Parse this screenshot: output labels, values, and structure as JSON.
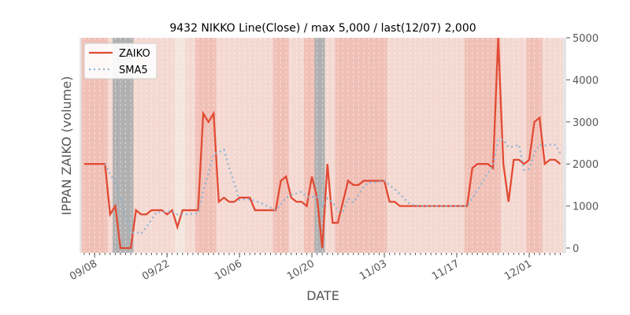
{
  "chart_data": {
    "type": "line",
    "title": "9432 NIKKO Line(Close) / max 5,000 / last(12/07) 2,000",
    "xlabel": "DATE",
    "ylabel": "IPPAN ZAIKO (volume)",
    "start_date": "09/06",
    "end_date": "12/07",
    "ylim": [
      0,
      5000
    ],
    "yticks": [
      "0",
      "1000",
      "2000",
      "3000",
      "4000",
      "5000"
    ],
    "xticks": [
      {
        "label": "09/08",
        "day": 2
      },
      {
        "label": "09/22",
        "day": 16
      },
      {
        "label": "10/06",
        "day": 30
      },
      {
        "label": "10/20",
        "day": 44
      },
      {
        "label": "11/03",
        "day": 58
      },
      {
        "label": "11/17",
        "day": 72
      },
      {
        "label": "12/01",
        "day": 86
      }
    ],
    "legend": {
      "position": "top-left",
      "entries": [
        "ZAIKO",
        "SMA5"
      ]
    },
    "series": [
      {
        "name": "ZAIKO",
        "color": "#e24a33",
        "values": [
          2000,
          2000,
          2000,
          2000,
          2000,
          800,
          1000,
          0,
          0,
          0,
          900,
          800,
          800,
          900,
          900,
          900,
          800,
          900,
          500,
          900,
          900,
          900,
          900,
          3200,
          3000,
          3200,
          1100,
          1200,
          1100,
          1100,
          1200,
          1200,
          1200,
          900,
          900,
          900,
          900,
          900,
          1600,
          1700,
          1200,
          1100,
          1100,
          1000,
          1700,
          1200,
          0,
          2000,
          600,
          600,
          1100,
          1600,
          1500,
          1500,
          1600,
          1600,
          1600,
          1600,
          1600,
          1100,
          1100,
          1000,
          1000,
          1000,
          1000,
          1000,
          1000,
          1000,
          1000,
          1000,
          1000,
          1000,
          1000,
          1000,
          1000,
          1900,
          2000,
          2000,
          2000,
          1900,
          5000,
          2000,
          1100,
          2100,
          2100,
          2000,
          2100,
          3000,
          3100,
          2000,
          2100,
          2100,
          2000
        ]
      },
      {
        "name": "SMA5",
        "color": "#8eb4d4",
        "window": 5
      }
    ],
    "bands": {
      "gray": [
        [
          6,
          9
        ],
        [
          45,
          46
        ]
      ],
      "dark": [
        [
          0,
          4
        ],
        [
          22,
          25
        ],
        [
          37,
          39
        ],
        [
          43,
          44
        ],
        [
          49,
          58
        ],
        [
          74,
          80
        ],
        [
          86,
          88
        ]
      ],
      "light": [
        [
          18,
          19
        ]
      ]
    }
  }
}
